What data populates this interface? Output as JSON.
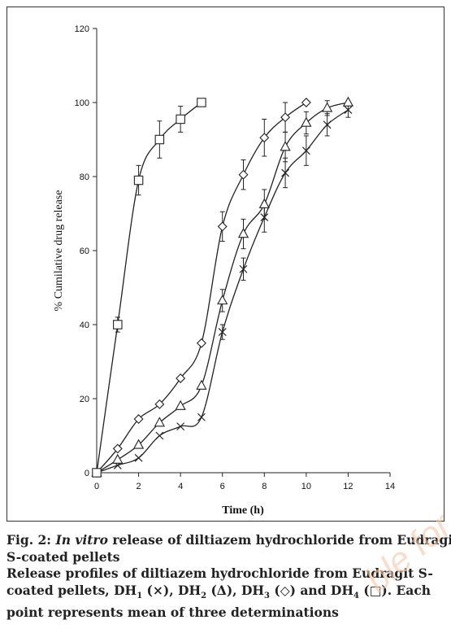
{
  "chart_data": {
    "type": "line",
    "title": "",
    "xlabel": "Time (h)",
    "ylabel": "% Cumilative drug release",
    "xlim": [
      0,
      14
    ],
    "ylim": [
      0,
      120
    ],
    "x_ticks": [
      0,
      2,
      4,
      6,
      8,
      10,
      12,
      14
    ],
    "y_ticks": [
      0,
      20,
      40,
      60,
      80,
      100,
      120
    ],
    "grid": false,
    "legend": "none",
    "series": [
      {
        "marker": "cross",
        "x": [
          0,
          1,
          2,
          3,
          4,
          5,
          6,
          7,
          8,
          9,
          10,
          11,
          12
        ],
        "y": [
          0,
          2,
          4,
          10,
          12.5,
          15,
          38,
          55,
          69,
          81,
          87,
          94,
          98
        ],
        "err": [
          0,
          0,
          0,
          0,
          0,
          0,
          2,
          3,
          4,
          4,
          4,
          3,
          2
        ]
      },
      {
        "marker": "triangle",
        "x": [
          0,
          1,
          2,
          3,
          4,
          5,
          6,
          7,
          8,
          9,
          10,
          11,
          12
        ],
        "y": [
          0,
          3.5,
          7.5,
          13.5,
          18,
          23.5,
          46.5,
          64.5,
          72.5,
          88,
          94.5,
          98.5,
          100
        ],
        "err": [
          0,
          0,
          0,
          0,
          0,
          0,
          3,
          4,
          4,
          4,
          3,
          2,
          0
        ]
      },
      {
        "marker": "diamond",
        "x": [
          0,
          1,
          2,
          3,
          4,
          5,
          6,
          7,
          8,
          9,
          10
        ],
        "y": [
          0,
          6.5,
          14.5,
          18.5,
          25.5,
          35,
          66.5,
          80.5,
          90.5,
          96,
          100
        ],
        "err": [
          0,
          0,
          0,
          0,
          0,
          0,
          4,
          4,
          5,
          4,
          0
        ]
      },
      {
        "marker": "square",
        "x": [
          0,
          1,
          2,
          3,
          4,
          5
        ],
        "y": [
          0,
          40,
          79,
          90,
          95.5,
          100
        ],
        "err": [
          0,
          2,
          4,
          5,
          3.5,
          0
        ]
      }
    ]
  },
  "caption": {
    "line1_prefix": "Fig. 2: ",
    "line1_italic": "In vitro",
    "line1_rest": " release of diltiazem hydrochloride from Eudragit",
    "line2": "S-coated pellets",
    "line3": "Release profiles of diltiazem hydrochloride from Eudragit S-",
    "line4_a": "coated pellets, DH",
    "line4_s1": "1",
    "line4_b": " (×), DH",
    "line4_s2": "2",
    "line4_c": " (Δ), DH",
    "line4_s3": "3",
    "line4_d": " (◇) and DH",
    "line4_s4": "4",
    "line4_e": " (□). Each",
    "line5": "point represents mean of three determinations"
  },
  "watermark": "ble for"
}
